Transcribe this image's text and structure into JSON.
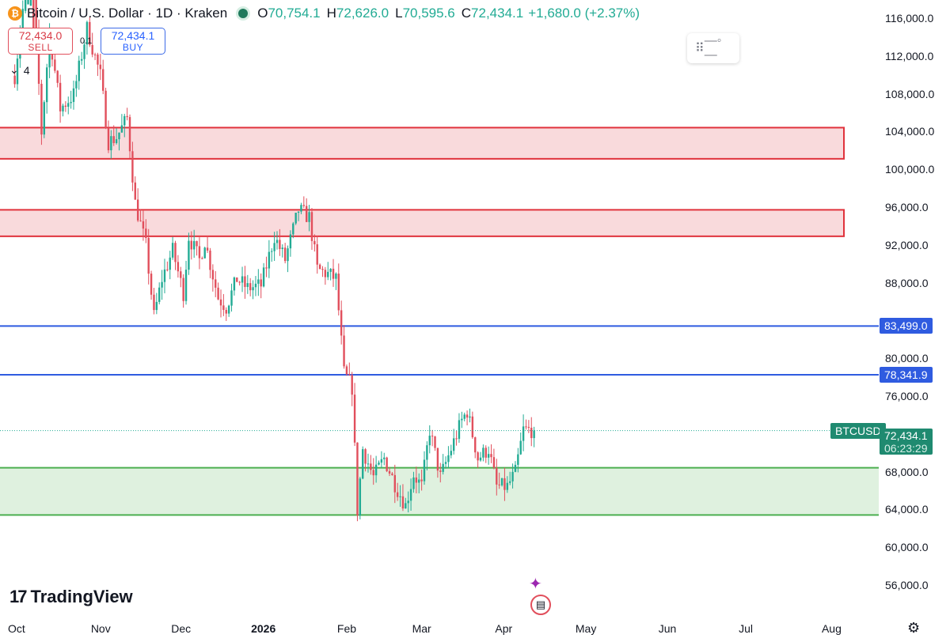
{
  "header": {
    "coin_glyph": "₿",
    "symbol_line": "Bitcoin / U.S. Dollar · 1D · Kraken",
    "open_label": "O",
    "open": "70,754.1",
    "high_label": "H",
    "high": "72,626.0",
    "low_label": "L",
    "low": "70,595.6",
    "close_label": "C",
    "close": "72,434.1",
    "change": "+1,680.0 (+2.37%)"
  },
  "trade": {
    "sell_price": "72,434.0",
    "sell_label": "SELL",
    "buy_price": "72,434.1",
    "buy_label": "BUY",
    "spread": "0.1"
  },
  "indicators_count": "4",
  "brand": "TradingView",
  "colors": {
    "up": "#22ab94",
    "down": "#e14f5c",
    "resistance": "#e0323c",
    "blue_line": "#2f5be0",
    "support": "#4caf50",
    "tag_green": "#1f8a70"
  },
  "chart_data": {
    "type": "candlestick",
    "title": "Bitcoin / U.S. Dollar · 1D · Kraken",
    "y_ticks": [
      "116,000.0",
      "112,000.0",
      "108,000.0",
      "104,000.0",
      "100,000.0",
      "96,000.0",
      "92,000.0",
      "88,000.0",
      "80,000.0",
      "76,000.0",
      "68,000.0",
      "64,000.0",
      "60,000.0",
      "56,000.0"
    ],
    "y_tick_values": [
      116000,
      112000,
      108000,
      104000,
      100000,
      96000,
      92000,
      88000,
      80000,
      76000,
      68000,
      64000,
      60000,
      56000
    ],
    "x_ticks": [
      "Oct",
      "Nov",
      "Dec",
      "2026",
      "Feb",
      "Mar",
      "Apr",
      "May",
      "Jun",
      "Jul",
      "Aug"
    ],
    "x_tick_dates": [
      "2025-10-01",
      "2025-11-01",
      "2025-12-01",
      "2026-01-01",
      "2026-02-01",
      "2026-03-01",
      "2026-04-01",
      "2026-05-01",
      "2026-06-01",
      "2026-07-01",
      "2026-08-01"
    ],
    "ylim": [
      53500,
      118000
    ],
    "zones": [
      {
        "kind": "resistance",
        "from": 101200,
        "to": 104500
      },
      {
        "kind": "resistance",
        "from": 93000,
        "to": 95800
      },
      {
        "kind": "support",
        "from": 63500,
        "to": 68500
      }
    ],
    "horizontal_lines": [
      {
        "value": 83499.0,
        "label": "83,499.0"
      },
      {
        "value": 78341.9,
        "label": "78,341.9"
      }
    ],
    "last_price": {
      "value": 72434.1,
      "label": "72,434.1",
      "symbol": "BTCUSD",
      "countdown": "06:23:29"
    },
    "anchors": [
      [
        "2025-09-30",
        110000
      ],
      [
        "2025-10-06",
        124000
      ],
      [
        "2025-10-10",
        104000
      ],
      [
        "2025-10-13",
        114500
      ],
      [
        "2025-10-17",
        106500
      ],
      [
        "2025-10-22",
        108000
      ],
      [
        "2025-10-27",
        115000
      ],
      [
        "2025-11-01",
        110000
      ],
      [
        "2025-11-04",
        103000
      ],
      [
        "2025-11-07",
        103500
      ],
      [
        "2025-11-11",
        105500
      ],
      [
        "2025-11-14",
        96500
      ],
      [
        "2025-11-18",
        92000
      ],
      [
        "2025-11-21",
        84500
      ],
      [
        "2025-11-24",
        88500
      ],
      [
        "2025-11-28",
        91500
      ],
      [
        "2025-12-02",
        87000
      ],
      [
        "2025-12-04",
        93000
      ],
      [
        "2025-12-08",
        90500
      ],
      [
        "2025-12-10",
        92500
      ],
      [
        "2025-12-15",
        86500
      ],
      [
        "2025-12-18",
        85500
      ],
      [
        "2025-12-22",
        88500
      ],
      [
        "2025-12-26",
        87500
      ],
      [
        "2025-12-31",
        87800
      ],
      [
        "2026-01-05",
        93000
      ],
      [
        "2026-01-09",
        90500
      ],
      [
        "2026-01-14",
        95800
      ],
      [
        "2026-01-18",
        95000
      ],
      [
        "2026-01-21",
        89500
      ],
      [
        "2026-01-25",
        89000
      ],
      [
        "2026-01-28",
        88500
      ],
      [
        "2026-01-31",
        78500
      ],
      [
        "2026-02-03",
        77000
      ],
      [
        "2026-02-05",
        64000
      ],
      [
        "2026-02-07",
        70500
      ],
      [
        "2026-02-11",
        67500
      ],
      [
        "2026-02-15",
        69500
      ],
      [
        "2026-02-19",
        66800
      ],
      [
        "2026-02-23",
        64500
      ],
      [
        "2026-02-26",
        67800
      ],
      [
        "2026-03-01",
        66500
      ],
      [
        "2026-03-04",
        72500
      ],
      [
        "2026-03-08",
        67500
      ],
      [
        "2026-03-12",
        70500
      ],
      [
        "2026-03-16",
        73500
      ],
      [
        "2026-03-18",
        74500
      ],
      [
        "2026-03-22",
        69500
      ],
      [
        "2026-03-26",
        70500
      ],
      [
        "2026-03-29",
        66500
      ],
      [
        "2026-04-02",
        66500
      ],
      [
        "2026-04-05",
        68000
      ],
      [
        "2026-04-08",
        72500
      ],
      [
        "2026-04-11",
        72500
      ],
      [
        "2026-04-12",
        72434
      ]
    ]
  }
}
